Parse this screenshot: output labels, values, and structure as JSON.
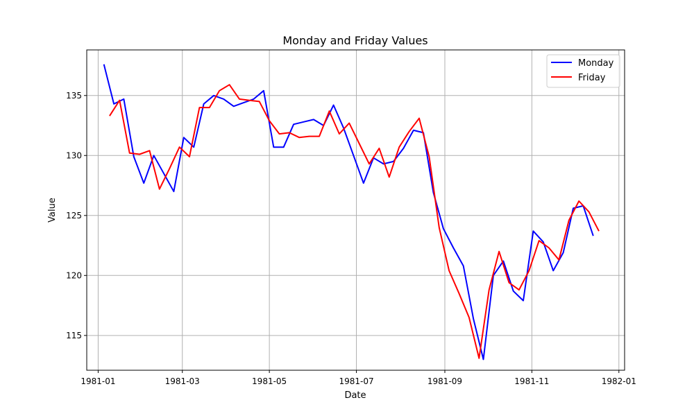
{
  "chart_data": {
    "type": "line",
    "title": "Monday and Friday Values",
    "xlabel": "Date",
    "ylabel": "Value",
    "grid": true,
    "legend_position": "top-right",
    "xlim": [
      "1980-12-24",
      "1982-01-05"
    ],
    "ylim": [
      112.1,
      138.8
    ],
    "x_ticks": [
      {
        "date": "1981-01-01",
        "label": "1981-01"
      },
      {
        "date": "1981-03-01",
        "label": "1981-03"
      },
      {
        "date": "1981-05-01",
        "label": "1981-05"
      },
      {
        "date": "1981-07-01",
        "label": "1981-07"
      },
      {
        "date": "1981-09-01",
        "label": "1981-09"
      },
      {
        "date": "1981-11-01",
        "label": "1981-11"
      },
      {
        "date": "1982-01-01",
        "label": "1982-01"
      }
    ],
    "y_ticks": [
      115,
      120,
      125,
      130,
      135
    ],
    "series": [
      {
        "name": "Monday",
        "color": "#0000ff",
        "points": [
          [
            "1981-01-05",
            137.6
          ],
          [
            "1981-01-12",
            134.3
          ],
          [
            "1981-01-19",
            134.7
          ],
          [
            "1981-01-26",
            129.9
          ],
          [
            "1981-02-02",
            127.7
          ],
          [
            "1981-02-09",
            130.0
          ],
          [
            "1981-02-16",
            128.5
          ],
          [
            "1981-02-23",
            127.0
          ],
          [
            "1981-03-02",
            131.5
          ],
          [
            "1981-03-09",
            130.7
          ],
          [
            "1981-03-16",
            134.3
          ],
          [
            "1981-03-23",
            135.0
          ],
          [
            "1981-03-30",
            134.7
          ],
          [
            "1981-04-06",
            134.1
          ],
          [
            "1981-04-13",
            134.4
          ],
          [
            "1981-04-20",
            134.7
          ],
          [
            "1981-04-27",
            135.4
          ],
          [
            "1981-05-04",
            130.7
          ],
          [
            "1981-05-11",
            130.7
          ],
          [
            "1981-05-18",
            132.6
          ],
          [
            "1981-05-25",
            132.8
          ],
          [
            "1981-06-01",
            133.0
          ],
          [
            "1981-06-08",
            132.5
          ],
          [
            "1981-06-15",
            134.2
          ],
          [
            "1981-06-22",
            132.3
          ],
          [
            "1981-06-29",
            130.0
          ],
          [
            "1981-07-06",
            127.7
          ],
          [
            "1981-07-13",
            129.8
          ],
          [
            "1981-07-20",
            129.3
          ],
          [
            "1981-07-27",
            129.5
          ],
          [
            "1981-08-03",
            130.6
          ],
          [
            "1981-08-10",
            132.1
          ],
          [
            "1981-08-17",
            131.9
          ],
          [
            "1981-08-24",
            126.9
          ],
          [
            "1981-08-31",
            123.9
          ],
          [
            "1981-09-07",
            122.3
          ],
          [
            "1981-09-14",
            120.8
          ],
          [
            "1981-09-21",
            116.4
          ],
          [
            "1981-09-28",
            113.0
          ],
          [
            "1981-10-05",
            120.0
          ],
          [
            "1981-10-12",
            121.2
          ],
          [
            "1981-10-19",
            118.7
          ],
          [
            "1981-10-26",
            117.9
          ],
          [
            "1981-11-02",
            123.7
          ],
          [
            "1981-11-09",
            122.8
          ],
          [
            "1981-11-16",
            120.4
          ],
          [
            "1981-11-23",
            121.9
          ],
          [
            "1981-11-30",
            125.6
          ],
          [
            "1981-12-07",
            125.8
          ],
          [
            "1981-12-14",
            123.3
          ]
        ]
      },
      {
        "name": "Friday",
        "color": "#ff0000",
        "points": [
          [
            "1981-01-09",
            133.3
          ],
          [
            "1981-01-16",
            134.6
          ],
          [
            "1981-01-23",
            130.2
          ],
          [
            "1981-01-30",
            130.1
          ],
          [
            "1981-02-06",
            130.4
          ],
          [
            "1981-02-13",
            127.2
          ],
          [
            "1981-02-20",
            128.9
          ],
          [
            "1981-02-27",
            130.7
          ],
          [
            "1981-03-06",
            129.9
          ],
          [
            "1981-03-13",
            134.0
          ],
          [
            "1981-03-20",
            134.0
          ],
          [
            "1981-03-27",
            135.4
          ],
          [
            "1981-04-03",
            135.9
          ],
          [
            "1981-04-10",
            134.7
          ],
          [
            "1981-04-17",
            134.6
          ],
          [
            "1981-04-24",
            134.5
          ],
          [
            "1981-05-01",
            132.9
          ],
          [
            "1981-05-08",
            131.8
          ],
          [
            "1981-05-15",
            131.9
          ],
          [
            "1981-05-22",
            131.5
          ],
          [
            "1981-05-29",
            131.6
          ],
          [
            "1981-06-05",
            131.6
          ],
          [
            "1981-06-12",
            133.7
          ],
          [
            "1981-06-19",
            131.8
          ],
          [
            "1981-06-26",
            132.7
          ],
          [
            "1981-07-03",
            131.0
          ],
          [
            "1981-07-10",
            129.3
          ],
          [
            "1981-07-17",
            130.6
          ],
          [
            "1981-07-24",
            128.2
          ],
          [
            "1981-07-31",
            130.7
          ],
          [
            "1981-08-07",
            132.0
          ],
          [
            "1981-08-14",
            133.1
          ],
          [
            "1981-08-21",
            129.9
          ],
          [
            "1981-08-28",
            124.0
          ],
          [
            "1981-09-04",
            120.4
          ],
          [
            "1981-09-11",
            118.5
          ],
          [
            "1981-09-18",
            116.5
          ],
          [
            "1981-09-25",
            113.1
          ],
          [
            "1981-10-02",
            118.8
          ],
          [
            "1981-10-09",
            122.0
          ],
          [
            "1981-10-16",
            119.4
          ],
          [
            "1981-10-23",
            118.8
          ],
          [
            "1981-10-30",
            120.4
          ],
          [
            "1981-11-06",
            122.9
          ],
          [
            "1981-11-13",
            122.3
          ],
          [
            "1981-11-20",
            121.3
          ],
          [
            "1981-11-27",
            124.6
          ],
          [
            "1981-12-04",
            126.2
          ],
          [
            "1981-12-11",
            125.3
          ],
          [
            "1981-12-18",
            123.7
          ]
        ]
      }
    ]
  }
}
